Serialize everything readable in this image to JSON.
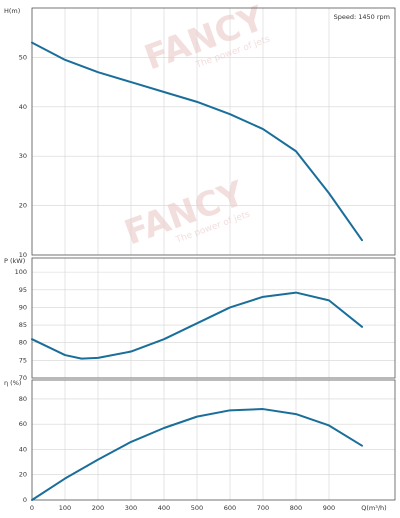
{
  "chart_data": [
    {
      "type": "line",
      "ylabel": "H(m)",
      "annotation": "Speed: 1450 rpm",
      "watermark": "FANCY",
      "watermark_sub": "The power of jets",
      "x": [
        0,
        100,
        200,
        300,
        400,
        500,
        600,
        700,
        800,
        900,
        1000
      ],
      "series": [
        {
          "name": "H",
          "color": "#1a6e9a",
          "values": [
            53,
            49.5,
            47,
            45,
            43,
            41,
            38.5,
            35.5,
            31,
            22.5,
            13
          ]
        }
      ],
      "xlim": [
        0,
        1100
      ],
      "xticks": [
        0,
        100,
        200,
        300,
        400,
        500,
        600,
        700,
        800,
        900
      ],
      "ylim": [
        10,
        60
      ],
      "yticks": [
        10,
        20,
        30,
        40,
        50
      ],
      "grid": true
    },
    {
      "type": "line",
      "ylabel": "P (kW)",
      "x": [
        0,
        100,
        150,
        200,
        300,
        400,
        500,
        600,
        700,
        800,
        900,
        1000
      ],
      "series": [
        {
          "name": "P",
          "color": "#1a6e9a",
          "values": [
            81,
            76.5,
            75.5,
            75.7,
            77.5,
            81,
            85.5,
            90,
            93,
            94.2,
            92,
            84.5
          ]
        }
      ],
      "xlim": [
        0,
        1100
      ],
      "xticks": [
        0,
        100,
        200,
        300,
        400,
        500,
        600,
        700,
        800,
        900
      ],
      "ylim": [
        70,
        104
      ],
      "yticks": [
        70,
        75,
        80,
        85,
        90,
        95,
        100
      ],
      "grid": true
    },
    {
      "type": "line",
      "ylabel": "η (%)",
      "xlabel": "Q(m³/h)",
      "x": [
        0,
        100,
        200,
        300,
        400,
        500,
        600,
        700,
        800,
        900,
        1000
      ],
      "series": [
        {
          "name": "η",
          "color": "#1a6e9a",
          "values": [
            0,
            17,
            32,
            46,
            57,
            66,
            71,
            72,
            68,
            59,
            43
          ]
        }
      ],
      "xlim": [
        0,
        1100
      ],
      "xticks": [
        0,
        100,
        200,
        300,
        400,
        500,
        600,
        700,
        800,
        900
      ],
      "ylim": [
        0,
        95
      ],
      "yticks": [
        0,
        20,
        40,
        60,
        80
      ],
      "grid": true
    }
  ]
}
